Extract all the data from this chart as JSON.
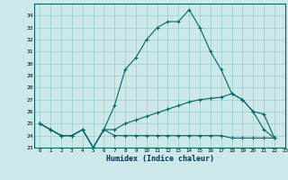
{
  "xlabel": "Humidex (Indice chaleur)",
  "background_color": "#cce8e8",
  "grid_color": "#99cccc",
  "line_color": "#006666",
  "y_main": [
    25,
    24.5,
    24,
    24,
    24.5,
    23,
    24.5,
    26.5,
    29.5,
    30.5,
    32,
    33,
    33.5,
    33.5,
    34.5,
    33,
    31,
    29.5,
    27.5,
    27,
    26,
    24.5,
    23.8
  ],
  "y_flat": [
    25,
    24.5,
    24,
    24,
    24.5,
    23,
    24.5,
    24,
    24,
    24,
    24,
    24,
    24,
    24,
    24,
    24,
    24,
    24,
    23.8,
    23.8,
    23.8,
    23.8,
    23.8
  ],
  "y_diag": [
    25,
    24.5,
    24,
    24,
    24.5,
    23,
    24.5,
    24.5,
    25.0,
    25.3,
    25.6,
    25.9,
    26.2,
    26.5,
    26.8,
    27.0,
    27.1,
    27.2,
    27.5,
    27,
    26,
    25.8,
    23.8
  ],
  "ylim": [
    23,
    35
  ],
  "xlim": [
    -0.5,
    23
  ],
  "yticks": [
    23,
    24,
    25,
    26,
    27,
    28,
    29,
    30,
    31,
    32,
    33,
    34
  ],
  "xticks": [
    0,
    1,
    2,
    3,
    4,
    5,
    6,
    7,
    8,
    9,
    10,
    11,
    12,
    13,
    14,
    15,
    16,
    17,
    18,
    19,
    20,
    21,
    22,
    23
  ]
}
